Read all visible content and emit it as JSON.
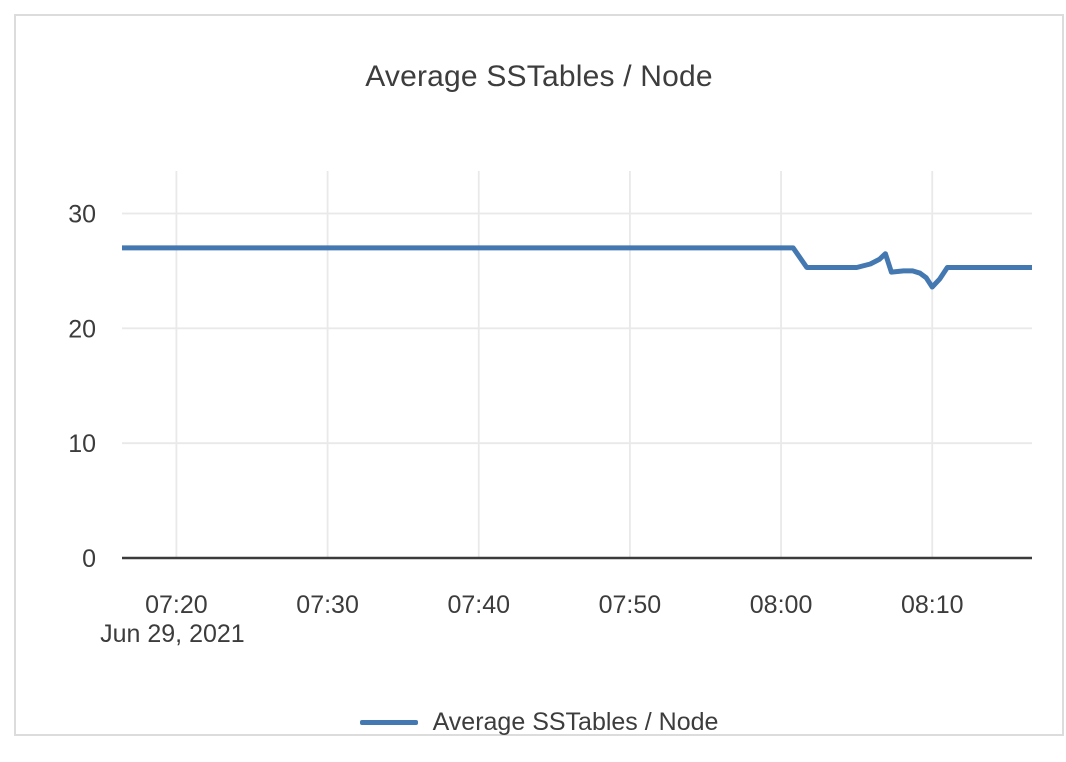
{
  "card": {
    "background": "#ffffff",
    "border_color": "#dcdcdc"
  },
  "colors": {
    "series_blue": "#4478b1",
    "gridline": "#e9e9e9",
    "axis_line": "#3b3b3b",
    "text": "#3c3c3c"
  },
  "chart_data": {
    "type": "line",
    "title": "Average SSTables / Node",
    "grid": true,
    "legend_position": "bottom",
    "x_axis": {
      "unit": "time of day (x encoded as minutes after 07:00)",
      "date_label": "Jun 29, 2021",
      "range_minutes": [
        16.4,
        76.6
      ],
      "ticks": [
        {
          "minute": 20,
          "label": "07:20"
        },
        {
          "minute": 30,
          "label": "07:30"
        },
        {
          "minute": 40,
          "label": "07:40"
        },
        {
          "minute": 50,
          "label": "07:50"
        },
        {
          "minute": 60,
          "label": "08:00"
        },
        {
          "minute": 70,
          "label": "08:10"
        }
      ]
    },
    "y_axis": {
      "ticks": [
        0,
        10,
        20,
        30
      ],
      "range": [
        0,
        33.7
      ]
    },
    "series": [
      {
        "name": "Average SSTables / Node",
        "color": "#4478b1",
        "points_minute_value": [
          [
            16.4,
            27.0
          ],
          [
            60.8,
            27.0
          ],
          [
            61.7,
            25.3
          ],
          [
            65.0,
            25.3
          ],
          [
            65.9,
            25.6
          ],
          [
            66.5,
            26.0
          ],
          [
            66.9,
            26.5
          ],
          [
            67.3,
            24.9
          ],
          [
            68.1,
            25.0
          ],
          [
            68.7,
            25.0
          ],
          [
            69.2,
            24.8
          ],
          [
            69.6,
            24.4
          ],
          [
            70.0,
            23.6
          ],
          [
            70.5,
            24.3
          ],
          [
            71.0,
            25.3
          ],
          [
            76.6,
            25.3
          ]
        ]
      }
    ]
  },
  "legend": {
    "items": [
      {
        "label": "Average SSTables / Node",
        "color": "#4478b1"
      }
    ]
  }
}
